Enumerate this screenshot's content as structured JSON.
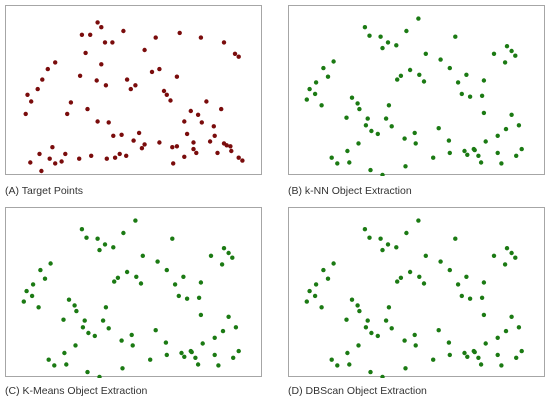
{
  "colors": {
    "target": "#7a0c0c",
    "extracted": "#1b7a13",
    "frame": "#a6a6a6"
  },
  "chart_data": [
    {
      "type": "scatter",
      "title": "(A) Target Points",
      "point_color": "#7a0c0c",
      "xlim": [
        0,
        270
      ],
      "ylim": [
        0,
        170
      ],
      "x": [
        95,
        87,
        78,
        99,
        103,
        111,
        123,
        146,
        158,
        184,
        207,
        232,
        244,
        248,
        49,
        41,
        35,
        19,
        30,
        23,
        82,
        99,
        76,
        94,
        104,
        127,
        131,
        162,
        181,
        154,
        136,
        167,
        170,
        174,
        196,
        204,
        229,
        213,
        17,
        66,
        62,
        84,
        95,
        107,
        121,
        140,
        112,
        189,
        208,
        221,
        222,
        235,
        239,
        192,
        199,
        32,
        46,
        49,
        60,
        75,
        88,
        114,
        126,
        143,
        162,
        177,
        189,
        202,
        225,
        240,
        248,
        22,
        34,
        43,
        56,
        105,
        119,
        134,
        146,
        176,
        181,
        199,
        217,
        232,
        252
      ],
      "y": [
        13,
        26,
        26,
        18,
        34,
        34,
        22,
        42,
        29,
        24,
        29,
        34,
        46,
        49,
        55,
        62,
        73,
        89,
        83,
        96,
        45,
        57,
        69,
        74,
        79,
        73,
        83,
        62,
        70,
        65,
        79,
        85,
        89,
        95,
        106,
        110,
        104,
        96,
        109,
        97,
        109,
        104,
        117,
        118,
        131,
        129,
        132,
        117,
        118,
        122,
        132,
        142,
        143,
        130,
        146,
        151,
        144,
        161,
        151,
        156,
        153,
        155,
        153,
        145,
        139,
        161,
        154,
        150,
        150,
        148,
        155,
        160,
        169,
        156,
        159,
        156,
        151,
        137,
        141,
        144,
        143,
        139,
        138,
        140,
        158
      ]
    },
    {
      "type": "scatter",
      "title": "(B) k-NN Object Extraction",
      "point_color": "#1b7a13",
      "xlim": [
        0,
        270
      ],
      "ylim": [
        0,
        170
      ],
      "x": [
        136,
        123,
        78,
        83,
        95,
        103,
        97,
        112,
        144,
        176,
        160,
        170,
        188,
        207,
        218,
        232,
        237,
        241,
        230,
        44,
        33,
        38,
        25,
        18,
        15,
        24,
        31,
        64,
        70,
        72,
        58,
        81,
        79,
        85,
        92,
        107,
        121,
        132,
        133,
        158,
        169,
        186,
        196,
        201,
        204,
        222,
        226,
        242,
        248,
        71,
        101,
        104,
        113,
        117,
        127,
        137,
        142,
        179,
        183,
        192,
        205,
        207,
        237,
        59,
        42,
        48,
        61,
        84,
        97,
        122,
        152,
        170,
        189,
        197,
        209,
        222,
        231,
        245
      ],
      "y": [
        9,
        22,
        18,
        27,
        28,
        34,
        40,
        37,
        46,
        28,
        52,
        61,
        68,
        74,
        46,
        38,
        43,
        48,
        55,
        54,
        61,
        70,
        76,
        83,
        94,
        88,
        100,
        92,
        98,
        104,
        113,
        114,
        121,
        127,
        130,
        122,
        135,
        129,
        140,
        124,
        137,
        148,
        146,
        153,
        160,
        150,
        161,
        153,
        146,
        140,
        114,
        100,
        73,
        69,
        63,
        68,
        75,
        76,
        88,
        91,
        90,
        108,
        110,
        148,
        155,
        161,
        160,
        168,
        173,
        164,
        155,
        150,
        152,
        147,
        138,
        132,
        125,
        121
      ]
    },
    {
      "type": "scatter",
      "title": "(C) K-Means Object Extraction",
      "point_color": "#1b7a13",
      "xlim": [
        0,
        270
      ],
      "ylim": [
        0,
        170
      ],
      "x": [
        136,
        123,
        78,
        83,
        95,
        103,
        97,
        112,
        144,
        176,
        160,
        170,
        188,
        207,
        218,
        232,
        237,
        241,
        230,
        44,
        33,
        38,
        25,
        18,
        15,
        24,
        31,
        64,
        70,
        72,
        58,
        81,
        79,
        85,
        92,
        107,
        121,
        132,
        133,
        158,
        169,
        186,
        196,
        201,
        204,
        222,
        226,
        242,
        248,
        71,
        101,
        104,
        113,
        117,
        127,
        137,
        142,
        179,
        183,
        192,
        205,
        207,
        237,
        59,
        42,
        48,
        61,
        84,
        97,
        122,
        152,
        170,
        189,
        197,
        209,
        222,
        231,
        245
      ],
      "y": [
        9,
        22,
        18,
        27,
        28,
        34,
        40,
        37,
        46,
        28,
        52,
        61,
        68,
        74,
        46,
        38,
        43,
        48,
        55,
        54,
        61,
        70,
        76,
        83,
        94,
        88,
        100,
        92,
        98,
        104,
        113,
        114,
        121,
        127,
        130,
        122,
        135,
        129,
        140,
        124,
        137,
        148,
        146,
        153,
        160,
        150,
        161,
        153,
        146,
        140,
        114,
        100,
        73,
        69,
        63,
        68,
        75,
        76,
        88,
        91,
        90,
        108,
        110,
        148,
        155,
        161,
        160,
        168,
        173,
        164,
        155,
        150,
        152,
        147,
        138,
        132,
        125,
        121
      ]
    },
    {
      "type": "scatter",
      "title": "(D) DBScan Object Extraction",
      "point_color": "#1b7a13",
      "xlim": [
        0,
        270
      ],
      "ylim": [
        0,
        170
      ],
      "x": [
        136,
        123,
        78,
        83,
        95,
        103,
        97,
        112,
        144,
        176,
        160,
        170,
        188,
        207,
        218,
        232,
        237,
        241,
        230,
        44,
        33,
        38,
        25,
        18,
        15,
        24,
        31,
        64,
        70,
        72,
        58,
        81,
        79,
        85,
        92,
        107,
        121,
        132,
        133,
        158,
        169,
        186,
        196,
        201,
        204,
        222,
        226,
        242,
        248,
        71,
        101,
        104,
        113,
        117,
        127,
        137,
        142,
        179,
        183,
        192,
        205,
        207,
        237,
        59,
        42,
        48,
        61,
        84,
        97,
        122,
        152,
        170,
        189,
        197,
        209,
        222,
        231,
        245
      ],
      "y": [
        9,
        22,
        18,
        27,
        28,
        34,
        40,
        37,
        46,
        28,
        52,
        61,
        68,
        74,
        46,
        38,
        43,
        48,
        55,
        54,
        61,
        70,
        76,
        83,
        94,
        88,
        100,
        92,
        98,
        104,
        113,
        114,
        121,
        127,
        130,
        122,
        135,
        129,
        140,
        124,
        137,
        148,
        146,
        153,
        160,
        150,
        161,
        153,
        146,
        140,
        114,
        100,
        73,
        69,
        63,
        68,
        75,
        76,
        88,
        91,
        90,
        108,
        110,
        148,
        155,
        161,
        160,
        168,
        173,
        164,
        155,
        150,
        152,
        147,
        138,
        132,
        125,
        121
      ]
    }
  ]
}
